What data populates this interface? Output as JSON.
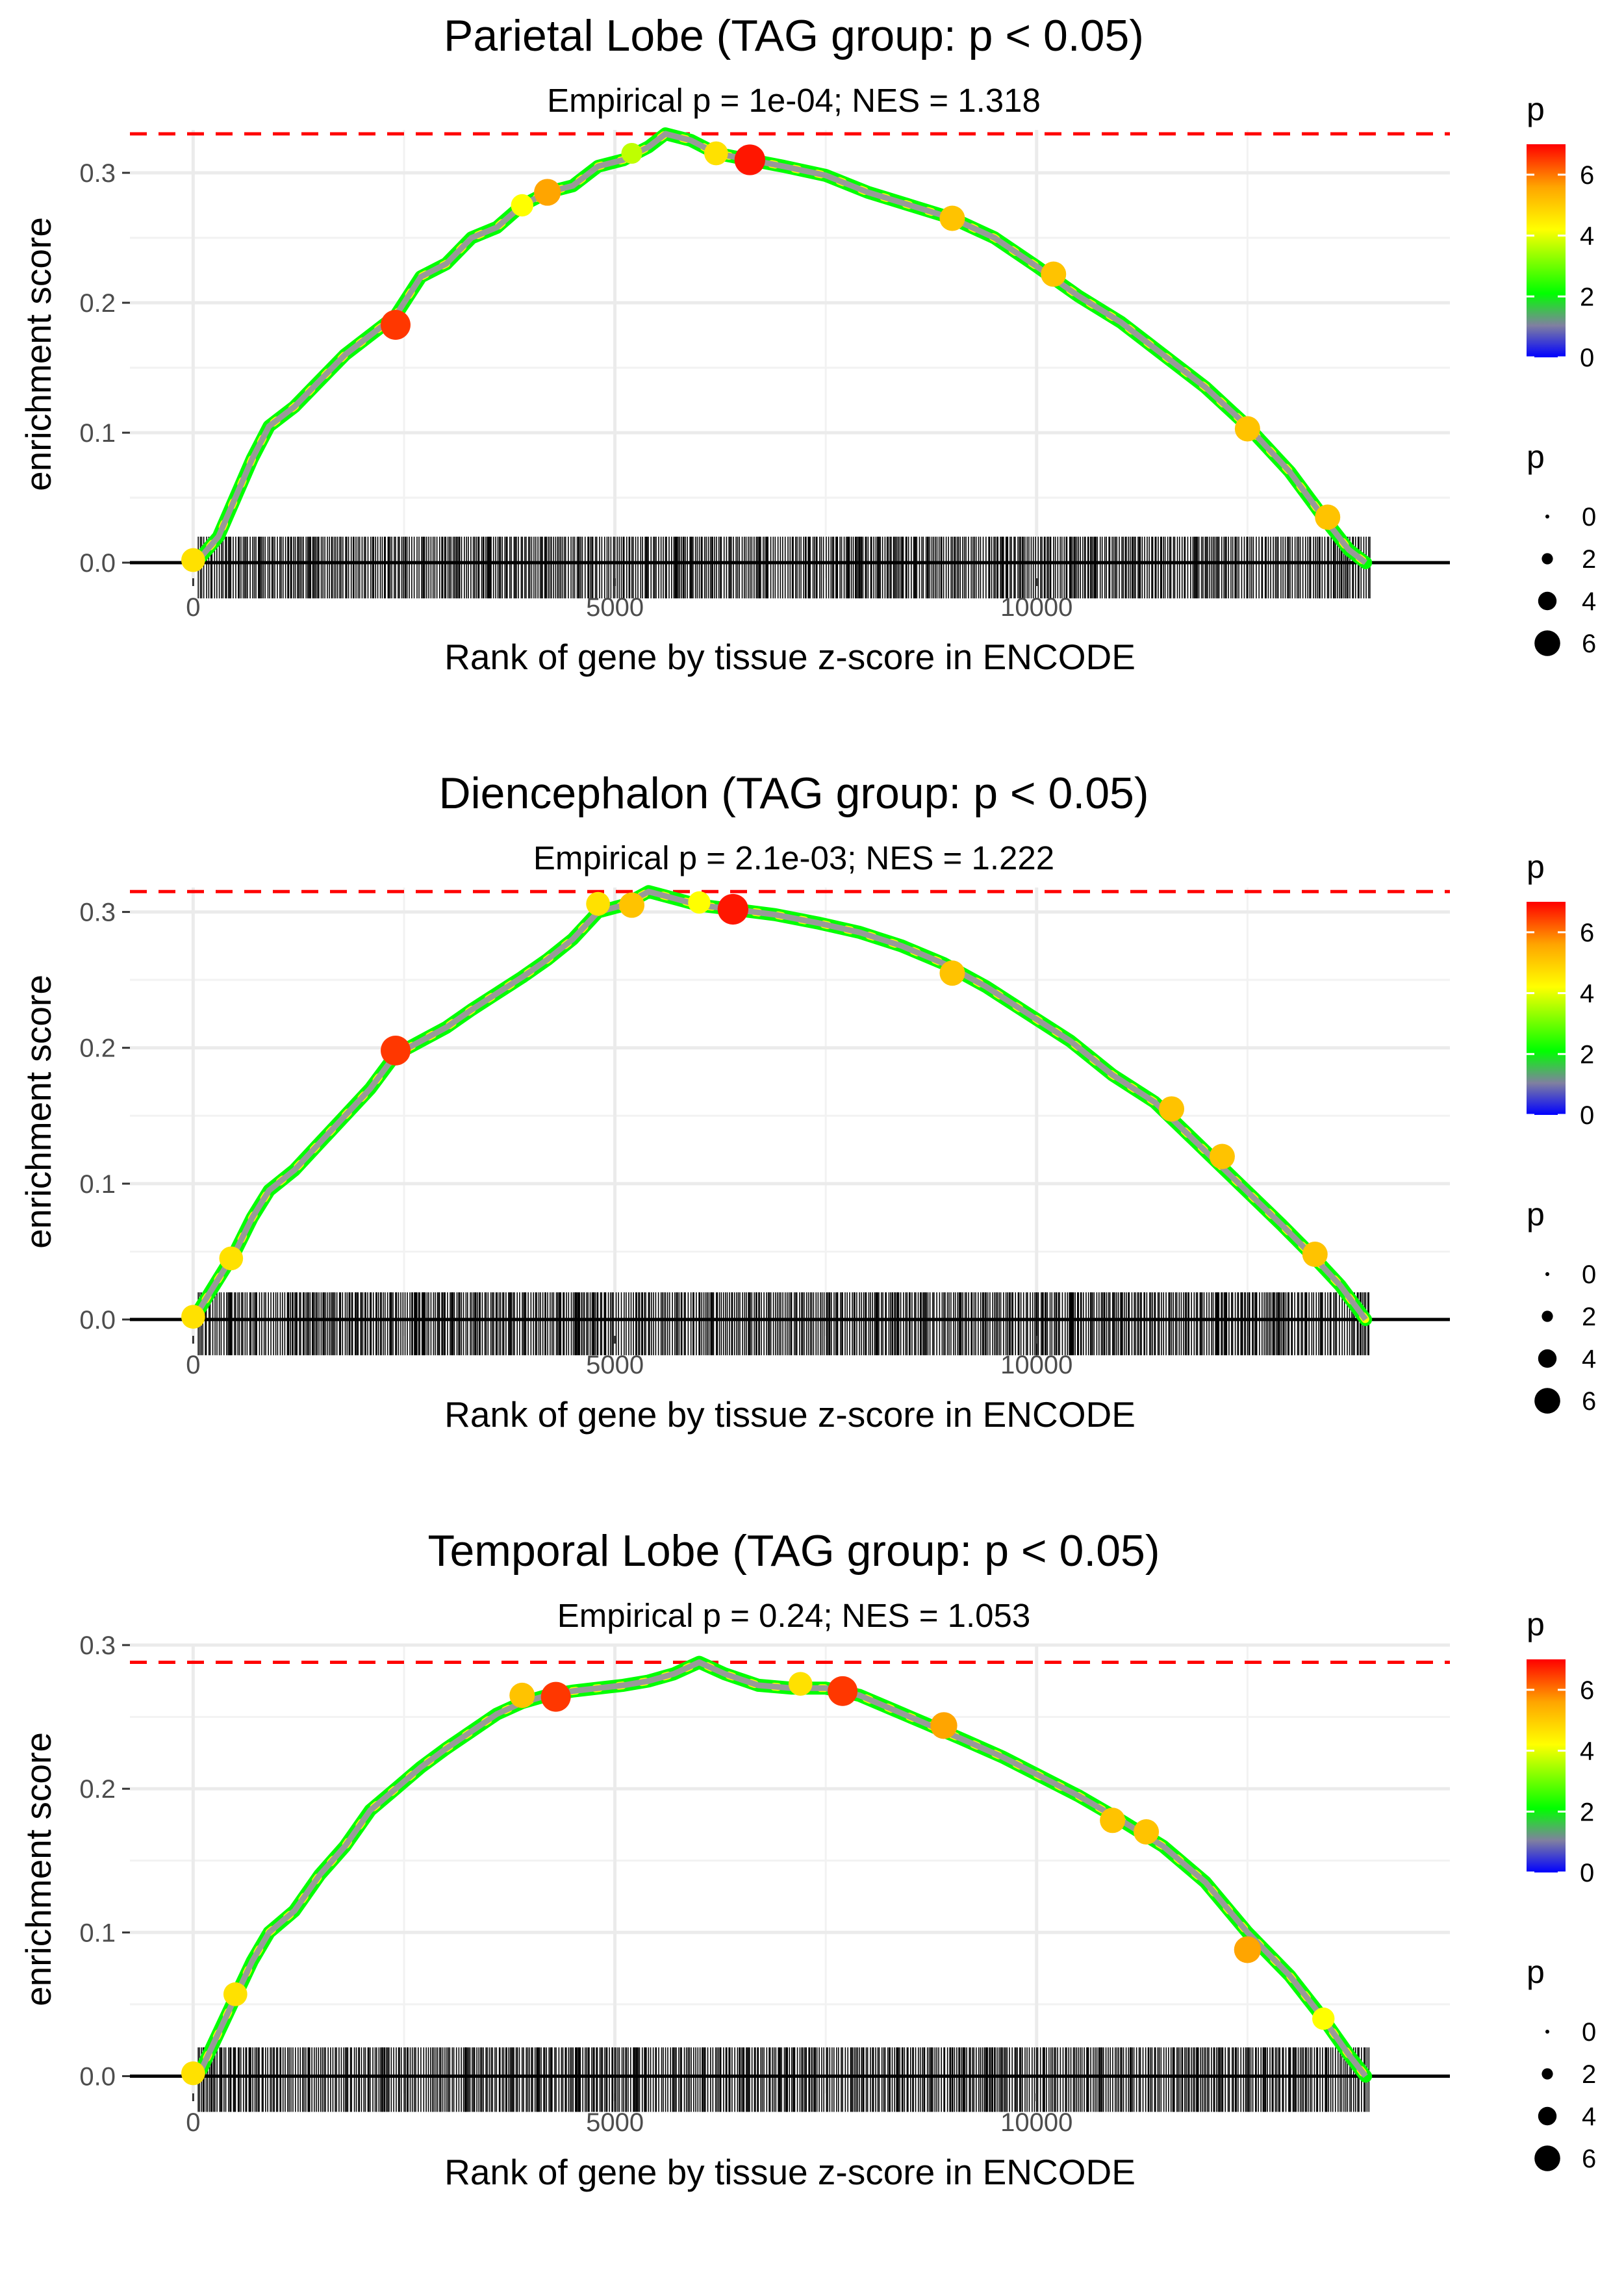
{
  "chart_data": [
    {
      "type": "line",
      "title": "Parietal Lobe (TAG group: p < 0.05)",
      "subtitle": "Empirical p = 1e-04; NES = 1.318",
      "xlabel": "Rank of gene by tissue z-score in ENCODE",
      "ylabel": "enrichment score",
      "xlim": [
        -750,
        14900
      ],
      "ylim": [
        -0.012,
        0.333
      ],
      "x_ticks": [
        0,
        5000,
        10000
      ],
      "x_tick_labels": [
        "0",
        "5000",
        "10000"
      ],
      "y_ticks": [
        0.0,
        0.1,
        0.2,
        0.3
      ],
      "y_tick_labels": [
        "0.0",
        "0.1",
        "0.2",
        "0.3"
      ],
      "max_es": 0.33,
      "n_genes": 14000,
      "curve": [
        [
          0,
          0
        ],
        [
          100,
          0.005
        ],
        [
          300,
          0.02
        ],
        [
          500,
          0.05
        ],
        [
          700,
          0.08
        ],
        [
          900,
          0.105
        ],
        [
          1200,
          0.12
        ],
        [
          1500,
          0.14
        ],
        [
          1800,
          0.16
        ],
        [
          2100,
          0.175
        ],
        [
          2400,
          0.19
        ],
        [
          2700,
          0.22
        ],
        [
          3000,
          0.23
        ],
        [
          3300,
          0.25
        ],
        [
          3600,
          0.258
        ],
        [
          3900,
          0.275
        ],
        [
          4200,
          0.285
        ],
        [
          4500,
          0.29
        ],
        [
          4800,
          0.305
        ],
        [
          5100,
          0.31
        ],
        [
          5400,
          0.32
        ],
        [
          5600,
          0.33
        ],
        [
          5900,
          0.325
        ],
        [
          6200,
          0.315
        ],
        [
          6600,
          0.31
        ],
        [
          7000,
          0.305
        ],
        [
          7500,
          0.298
        ],
        [
          8000,
          0.285
        ],
        [
          8500,
          0.275
        ],
        [
          9000,
          0.265
        ],
        [
          9500,
          0.25
        ],
        [
          10000,
          0.228
        ],
        [
          10500,
          0.205
        ],
        [
          11000,
          0.185
        ],
        [
          11500,
          0.16
        ],
        [
          12000,
          0.135
        ],
        [
          12500,
          0.105
        ],
        [
          13000,
          0.07
        ],
        [
          13400,
          0.035
        ],
        [
          13700,
          0.01
        ],
        [
          13900,
          0
        ]
      ],
      "highlight_points": [
        [
          0,
          0.002,
          4.5
        ],
        [
          2400,
          0.183,
          6.5
        ],
        [
          3900,
          0.275,
          4
        ],
        [
          4200,
          0.285,
          5.5
        ],
        [
          5200,
          0.315,
          3.5
        ],
        [
          6200,
          0.315,
          4.5
        ],
        [
          6600,
          0.31,
          6.8
        ],
        [
          9000,
          0.265,
          5
        ],
        [
          10200,
          0.222,
          5
        ],
        [
          12500,
          0.103,
          5
        ],
        [
          13450,
          0.035,
          5
        ]
      ],
      "legend": {
        "color_title": "p",
        "color_ticks": [
          "0",
          "2",
          "4",
          "6"
        ],
        "size_title": "p",
        "size_labels": [
          "0",
          "2",
          "4",
          "6"
        ]
      }
    },
    {
      "type": "line",
      "title": "Diencephalon (TAG group: p < 0.05)",
      "subtitle": "Empirical p = 2.1e-03; NES = 1.222",
      "xlabel": "Rank of gene by tissue z-score in ENCODE",
      "ylabel": "enrichment score",
      "xlim": [
        -750,
        14900
      ],
      "ylim": [
        -0.012,
        0.318
      ],
      "x_ticks": [
        0,
        5000,
        10000
      ],
      "x_tick_labels": [
        "0",
        "5000",
        "10000"
      ],
      "y_ticks": [
        0.0,
        0.1,
        0.2,
        0.3
      ],
      "y_tick_labels": [
        "0.0",
        "0.1",
        "0.2",
        "0.3"
      ],
      "max_es": 0.315,
      "n_genes": 14000,
      "curve": [
        [
          0,
          0
        ],
        [
          100,
          0.01
        ],
        [
          300,
          0.03
        ],
        [
          500,
          0.05
        ],
        [
          700,
          0.075
        ],
        [
          900,
          0.095
        ],
        [
          1200,
          0.11
        ],
        [
          1500,
          0.13
        ],
        [
          1800,
          0.15
        ],
        [
          2100,
          0.17
        ],
        [
          2400,
          0.195
        ],
        [
          2700,
          0.205
        ],
        [
          3000,
          0.215
        ],
        [
          3300,
          0.228
        ],
        [
          3600,
          0.24
        ],
        [
          3900,
          0.252
        ],
        [
          4200,
          0.265
        ],
        [
          4500,
          0.28
        ],
        [
          4800,
          0.3
        ],
        [
          5100,
          0.305
        ],
        [
          5400,
          0.315
        ],
        [
          5700,
          0.31
        ],
        [
          6000,
          0.305
        ],
        [
          6400,
          0.302
        ],
        [
          6900,
          0.298
        ],
        [
          7400,
          0.292
        ],
        [
          7900,
          0.285
        ],
        [
          8400,
          0.275
        ],
        [
          8900,
          0.262
        ],
        [
          9400,
          0.245
        ],
        [
          9900,
          0.225
        ],
        [
          10400,
          0.205
        ],
        [
          10900,
          0.18
        ],
        [
          11400,
          0.16
        ],
        [
          11900,
          0.13
        ],
        [
          12400,
          0.1
        ],
        [
          12900,
          0.07
        ],
        [
          13300,
          0.045
        ],
        [
          13600,
          0.025
        ],
        [
          13900,
          0
        ]
      ],
      "highlight_points": [
        [
          0,
          0.002,
          4.5
        ],
        [
          450,
          0.045,
          4.5
        ],
        [
          2400,
          0.198,
          6.5
        ],
        [
          4800,
          0.306,
          4.5
        ],
        [
          5200,
          0.305,
          5
        ],
        [
          6000,
          0.307,
          4
        ],
        [
          6400,
          0.302,
          6.8
        ],
        [
          9000,
          0.255,
          5
        ],
        [
          11600,
          0.155,
          5
        ],
        [
          12200,
          0.12,
          5
        ],
        [
          13300,
          0.048,
          5
        ]
      ],
      "legend": {
        "color_title": "p",
        "color_ticks": [
          "0",
          "2",
          "4",
          "6"
        ],
        "size_title": "p",
        "size_labels": [
          "0",
          "2",
          "4",
          "6"
        ]
      }
    },
    {
      "type": "line",
      "title": "Temporal Lobe (TAG group: p < 0.05)",
      "subtitle": "Empirical p = 0.24; NES = 1.053",
      "xlabel": "Rank of gene by tissue z-score in ENCODE",
      "ylabel": "enrichment score",
      "xlim": [
        -750,
        14900
      ],
      "ylim": [
        -0.012,
        0.3
      ],
      "x_ticks": [
        0,
        5000,
        10000
      ],
      "x_tick_labels": [
        "0",
        "5000",
        "10000"
      ],
      "y_ticks": [
        0.0,
        0.1,
        0.2,
        0.3
      ],
      "y_tick_labels": [
        "0.0",
        "0.1",
        "0.2",
        "0.3"
      ],
      "max_es": 0.288,
      "n_genes": 14000,
      "curve": [
        [
          0,
          0
        ],
        [
          100,
          0.005
        ],
        [
          300,
          0.03
        ],
        [
          500,
          0.055
        ],
        [
          700,
          0.08
        ],
        [
          900,
          0.1
        ],
        [
          1200,
          0.115
        ],
        [
          1500,
          0.14
        ],
        [
          1800,
          0.16
        ],
        [
          2100,
          0.185
        ],
        [
          2400,
          0.2
        ],
        [
          2700,
          0.215
        ],
        [
          3000,
          0.228
        ],
        [
          3300,
          0.24
        ],
        [
          3600,
          0.252
        ],
        [
          3900,
          0.26
        ],
        [
          4200,
          0.265
        ],
        [
          4500,
          0.268
        ],
        [
          4800,
          0.27
        ],
        [
          5100,
          0.272
        ],
        [
          5400,
          0.275
        ],
        [
          5700,
          0.28
        ],
        [
          6000,
          0.288
        ],
        [
          6300,
          0.28
        ],
        [
          6700,
          0.272
        ],
        [
          7100,
          0.27
        ],
        [
          7500,
          0.27
        ],
        [
          7900,
          0.265
        ],
        [
          8300,
          0.255
        ],
        [
          8700,
          0.245
        ],
        [
          9100,
          0.235
        ],
        [
          9600,
          0.222
        ],
        [
          10000,
          0.21
        ],
        [
          10500,
          0.195
        ],
        [
          11000,
          0.178
        ],
        [
          11500,
          0.16
        ],
        [
          12000,
          0.135
        ],
        [
          12500,
          0.1
        ],
        [
          13000,
          0.07
        ],
        [
          13400,
          0.04
        ],
        [
          13700,
          0.015
        ],
        [
          13900,
          0
        ]
      ],
      "highlight_points": [
        [
          0,
          0.002,
          4.5
        ],
        [
          500,
          0.057,
          4.5
        ],
        [
          3900,
          0.265,
          5
        ],
        [
          4300,
          0.264,
          6.5
        ],
        [
          7200,
          0.273,
          4.5
        ],
        [
          7700,
          0.268,
          6.5
        ],
        [
          8900,
          0.244,
          5.5
        ],
        [
          10900,
          0.178,
          5
        ],
        [
          11300,
          0.17,
          5
        ],
        [
          12500,
          0.088,
          5.5
        ],
        [
          13400,
          0.04,
          4
        ]
      ],
      "legend": {
        "color_title": "p",
        "color_ticks": [
          "0",
          "2",
          "4",
          "6"
        ],
        "size_title": "p",
        "size_labels": [
          "0",
          "2",
          "4",
          "6"
        ]
      }
    }
  ]
}
